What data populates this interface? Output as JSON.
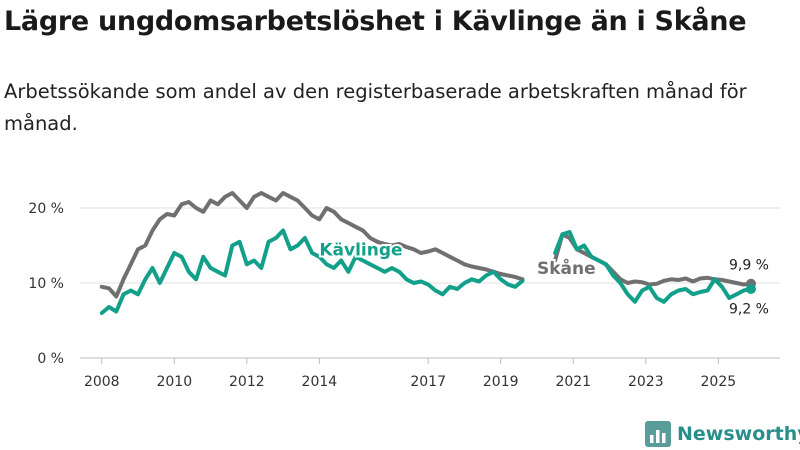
{
  "header": {
    "title": "Lägre ungdomsarbetslöshet i Kävlinge än i Skåne",
    "subtitle": "Arbetssökande som andel av den registerbaserade arbetskraften månad för månad."
  },
  "brand": {
    "name": "Newsworthy",
    "color": "#2a8f8b"
  },
  "chart_data": {
    "type": "line",
    "title": "Lägre ungdomsarbetslöshet i Kävlinge än i Skåne",
    "xlabel": "",
    "ylabel": "",
    "xlim": [
      2007.4,
      2026.7
    ],
    "ylim": [
      0,
      20
    ],
    "y_ticks": [
      0,
      10,
      20
    ],
    "y_tick_labels": [
      "0 %",
      "10 %",
      "20 %"
    ],
    "x_ticks": [
      2008,
      2010,
      2012,
      2014,
      2017,
      2019,
      2021,
      2023,
      2025
    ],
    "x_tick_labels": [
      "2008",
      "2010",
      "2012",
      "2014",
      "2017",
      "2019",
      "2021",
      "2023",
      "2025"
    ],
    "grid": true,
    "series": [
      {
        "name": "Skåne",
        "color": "#707070",
        "x": [
          2008.0,
          2008.2,
          2008.4,
          2008.6,
          2008.8,
          2009.0,
          2009.2,
          2009.4,
          2009.6,
          2009.8,
          2010.0,
          2010.2,
          2010.4,
          2010.6,
          2010.8,
          2011.0,
          2011.2,
          2011.4,
          2011.6,
          2011.8,
          2012.0,
          2012.2,
          2012.4,
          2012.6,
          2012.8,
          2013.0,
          2013.2,
          2013.4,
          2013.6,
          2013.8,
          2014.0,
          2014.2,
          2014.4,
          2014.6,
          2014.8,
          2015.0,
          2015.2,
          2015.4,
          2015.6,
          2015.8,
          2016.0,
          2016.2,
          2016.4,
          2016.6,
          2016.8,
          2017.0,
          2017.2,
          2017.4,
          2017.6,
          2017.8,
          2018.0,
          2018.2,
          2018.4,
          2018.6,
          2018.8,
          2019.0,
          2019.2,
          2019.4,
          2019.6
        ],
        "values": [
          9.5,
          9.3,
          8.2,
          10.5,
          12.5,
          14.5,
          15.0,
          17.0,
          18.5,
          19.2,
          19.0,
          20.5,
          20.8,
          20.0,
          19.5,
          21.0,
          20.5,
          21.5,
          22.0,
          21.0,
          20.0,
          21.5,
          22.0,
          21.5,
          21.0,
          22.0,
          21.5,
          21.0,
          20.0,
          19.0,
          18.5,
          20.0,
          19.5,
          18.5,
          18.0,
          17.5,
          17.0,
          16.0,
          15.5,
          15.2,
          15.0,
          15.2,
          14.8,
          14.5,
          14.0,
          14.2,
          14.5,
          14.0,
          13.5,
          13.0,
          12.5,
          12.2,
          12.0,
          11.8,
          11.5,
          11.2,
          11.0,
          10.8,
          10.5
        ]
      },
      {
        "name": "Skåne",
        "color": "#707070",
        "x": [
          2020.5,
          2020.7,
          2020.9,
          2021.1,
          2021.3,
          2021.5,
          2021.7,
          2021.9,
          2022.1,
          2022.3,
          2022.5,
          2022.7,
          2022.9,
          2023.1,
          2023.3,
          2023.5,
          2023.7,
          2023.9,
          2024.1,
          2024.3,
          2024.5,
          2024.7,
          2024.9,
          2025.1,
          2025.3,
          2025.5,
          2025.7,
          2025.9
        ],
        "values": [
          13.0,
          16.5,
          16.0,
          14.5,
          14.0,
          13.5,
          13.0,
          12.5,
          11.5,
          10.5,
          10.0,
          10.2,
          10.1,
          9.8,
          9.9,
          10.3,
          10.5,
          10.4,
          10.6,
          10.2,
          10.6,
          10.7,
          10.5,
          10.4,
          10.2,
          10.0,
          9.8,
          9.9
        ]
      },
      {
        "name": "Kävlinge",
        "color": "#12a08a",
        "x": [
          2008.0,
          2008.2,
          2008.4,
          2008.6,
          2008.8,
          2009.0,
          2009.2,
          2009.4,
          2009.6,
          2009.8,
          2010.0,
          2010.2,
          2010.4,
          2010.6,
          2010.8,
          2011.0,
          2011.2,
          2011.4,
          2011.6,
          2011.8,
          2012.0,
          2012.2,
          2012.4,
          2012.6,
          2012.8,
          2013.0,
          2013.2,
          2013.4,
          2013.6,
          2013.8,
          2014.0,
          2014.2,
          2014.4,
          2014.6,
          2014.8,
          2015.0,
          2015.2,
          2015.4,
          2015.6,
          2015.8,
          2016.0,
          2016.2,
          2016.4,
          2016.6,
          2016.8,
          2017.0,
          2017.2,
          2017.4,
          2017.6,
          2017.8,
          2018.0,
          2018.2,
          2018.4,
          2018.6,
          2018.8,
          2019.0,
          2019.2,
          2019.4,
          2019.6
        ],
        "values": [
          6.0,
          6.8,
          6.2,
          8.5,
          9.0,
          8.5,
          10.5,
          12.0,
          10.0,
          12.0,
          14.0,
          13.5,
          11.5,
          10.5,
          13.5,
          12.0,
          11.5,
          11.0,
          15.0,
          15.5,
          12.5,
          13.0,
          12.0,
          15.5,
          16.0,
          17.0,
          14.5,
          15.0,
          16.0,
          14.0,
          13.5,
          12.5,
          12.0,
          13.0,
          11.5,
          13.5,
          13.0,
          12.5,
          12.0,
          11.5,
          12.0,
          11.5,
          10.5,
          10.0,
          10.2,
          9.8,
          9.0,
          8.5,
          9.5,
          9.2,
          10.0,
          10.5,
          10.2,
          11.0,
          11.5,
          10.5,
          9.8,
          9.5,
          10.3
        ]
      },
      {
        "name": "Kävlinge",
        "color": "#12a08a",
        "x": [
          2020.5,
          2020.7,
          2020.9,
          2021.1,
          2021.3,
          2021.5,
          2021.7,
          2021.9,
          2022.1,
          2022.3,
          2022.5,
          2022.7,
          2022.9,
          2023.1,
          2023.3,
          2023.5,
          2023.7,
          2023.9,
          2024.1,
          2024.3,
          2024.5,
          2024.7,
          2024.9,
          2025.1,
          2025.3,
          2025.5,
          2025.7,
          2025.9
        ],
        "values": [
          14.0,
          16.5,
          16.8,
          14.5,
          15.0,
          13.5,
          13.0,
          12.5,
          11.0,
          10.0,
          8.5,
          7.5,
          9.0,
          9.5,
          8.0,
          7.5,
          8.5,
          9.0,
          9.2,
          8.5,
          8.8,
          9.0,
          10.5,
          9.5,
          8.0,
          8.5,
          9.0,
          9.2
        ]
      }
    ],
    "series_labels": [
      {
        "text": "Kävlinge",
        "series": "Kävlinge",
        "x": 2014.0,
        "y": 14.5
      },
      {
        "text": "Skåne",
        "series": "Skåne",
        "x": 2020.0,
        "y": 12.0
      }
    ],
    "end_labels": [
      {
        "text": "9,9 %",
        "series": "Skåne",
        "x": 2025.9,
        "y": 9.9,
        "ty": 12.5
      },
      {
        "text": "9,2 %",
        "series": "Kävlinge",
        "x": 2025.9,
        "y": 9.2,
        "ty": 6.6
      }
    ]
  }
}
